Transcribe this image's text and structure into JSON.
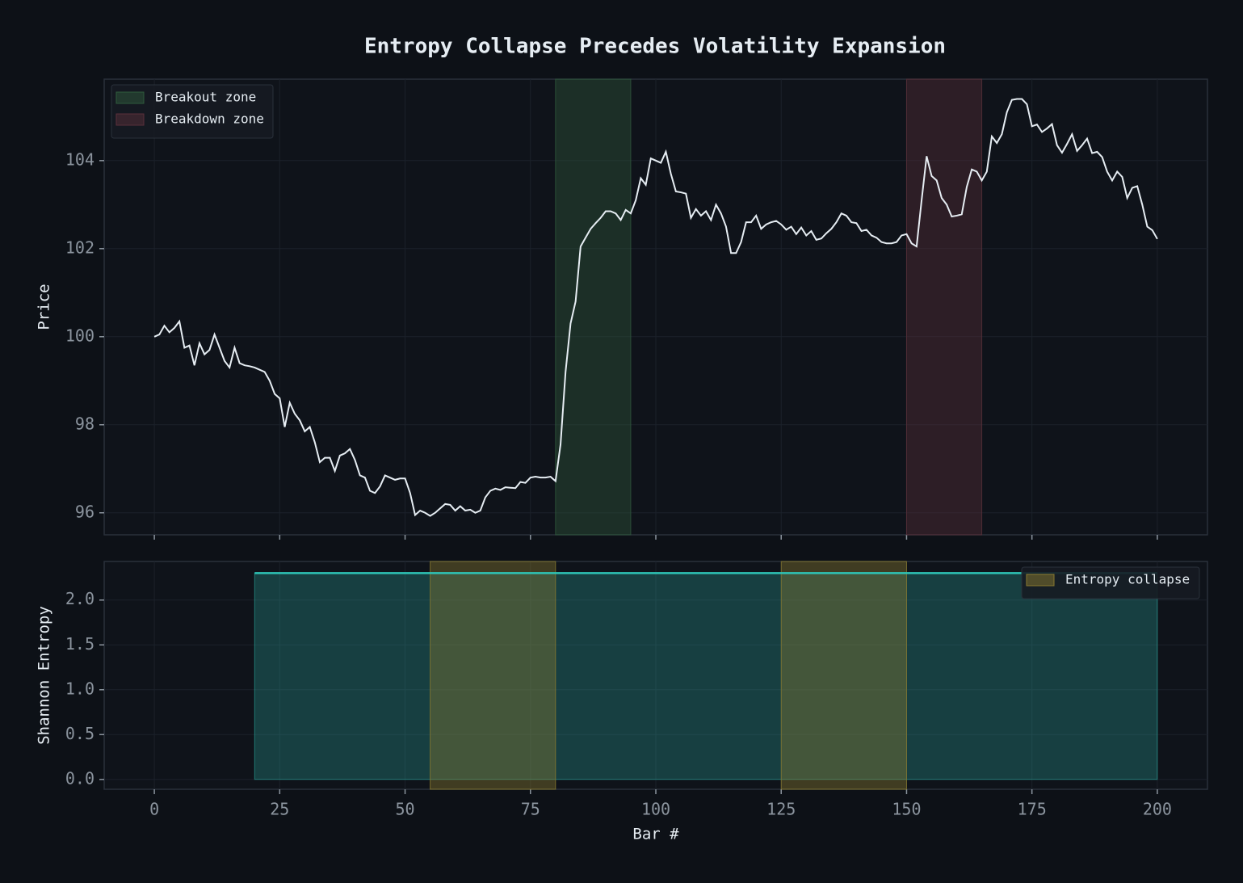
{
  "title": "Entropy Collapse Precedes Volatility Expansion",
  "chart_data": [
    {
      "type": "line",
      "ylabel": "Price",
      "legend": "upper left",
      "grid": true,
      "xlim": [
        -10,
        210
      ],
      "ylim": [
        95.5,
        105.85
      ],
      "xticks": [
        0,
        25,
        50,
        75,
        100,
        125,
        150,
        175,
        200
      ],
      "yticks": [
        96,
        98,
        100,
        102,
        104
      ],
      "spans": [
        {
          "name": "Breakout zone",
          "color": "#2f5a3c",
          "ranges": [
            [
              80,
              95
            ]
          ]
        },
        {
          "name": "Breakdown zone",
          "color": "#5a2f3a",
          "ranges": [
            [
              150,
              165
            ]
          ]
        }
      ],
      "series": [
        {
          "color": "#e6edf3",
          "x": [
            0,
            1,
            2,
            3,
            4,
            5,
            6,
            7,
            8,
            9,
            10,
            11,
            12,
            13,
            14,
            15,
            16,
            17,
            18,
            19,
            20,
            21,
            22,
            23,
            24,
            25,
            26,
            27,
            28,
            29,
            30,
            31,
            32,
            33,
            34,
            35,
            36,
            37,
            38,
            39,
            40,
            41,
            42,
            43,
            44,
            45,
            46,
            47,
            48,
            49,
            50,
            51,
            52,
            53,
            54,
            55,
            56,
            57,
            58,
            59,
            60,
            61,
            62,
            63,
            64,
            65,
            66,
            67,
            68,
            69,
            70,
            71,
            72,
            73,
            74,
            75,
            76,
            77,
            78,
            79,
            80,
            81,
            82,
            83,
            84,
            85,
            86,
            87,
            88,
            89,
            90,
            91,
            92,
            93,
            94,
            95,
            96,
            97,
            98,
            99,
            100,
            101,
            102,
            103,
            104,
            105,
            106,
            107,
            108,
            109,
            110,
            111,
            112,
            113,
            114,
            115,
            116,
            117,
            118,
            119,
            120,
            121,
            122,
            123,
            124,
            125,
            126,
            127,
            128,
            129,
            130,
            131,
            132,
            133,
            134,
            135,
            136,
            137,
            138,
            139,
            140,
            141,
            142,
            143,
            144,
            145,
            146,
            147,
            148,
            149,
            150,
            151,
            152,
            153,
            154,
            155,
            156,
            157,
            158,
            159,
            160,
            161,
            162,
            163,
            164,
            165,
            166,
            167,
            168,
            169,
            170,
            171,
            172,
            173,
            174,
            175,
            176,
            177,
            178,
            179,
            180,
            181,
            182,
            183,
            184,
            185,
            186,
            187,
            188,
            189,
            190,
            191,
            192,
            193,
            194,
            195,
            196,
            197,
            198,
            199,
            200
          ],
          "values": [
            100.0,
            100.05,
            100.25,
            100.1,
            100.2,
            100.35,
            99.75,
            99.8,
            99.35,
            99.85,
            99.6,
            99.7,
            100.05,
            99.75,
            99.45,
            99.3,
            99.75,
            99.4,
            99.35,
            99.33,
            99.3,
            99.25,
            99.2,
            99.0,
            98.7,
            98.6,
            97.95,
            98.5,
            98.25,
            98.1,
            97.85,
            97.95,
            97.6,
            97.15,
            97.25,
            97.25,
            96.95,
            97.3,
            97.35,
            97.45,
            97.2,
            96.85,
            96.8,
            96.5,
            96.45,
            96.6,
            96.85,
            96.8,
            96.75,
            96.78,
            96.78,
            96.45,
            95.95,
            96.05,
            96.0,
            95.93,
            96.0,
            96.1,
            96.2,
            96.18,
            96.05,
            96.15,
            96.05,
            96.07,
            96.0,
            96.05,
            96.35,
            96.5,
            96.55,
            96.52,
            96.58,
            96.57,
            96.56,
            96.7,
            96.68,
            96.8,
            96.82,
            96.8,
            96.8,
            96.82,
            96.72,
            97.55,
            99.2,
            100.3,
            100.8,
            102.05,
            102.25,
            102.45,
            102.58,
            102.7,
            102.85,
            102.85,
            102.8,
            102.65,
            102.88,
            102.8,
            103.1,
            103.6,
            103.45,
            104.05,
            104.0,
            103.95,
            104.2,
            103.7,
            103.3,
            103.28,
            103.25,
            102.7,
            102.9,
            102.75,
            102.85,
            102.65,
            103.0,
            102.8,
            102.5,
            101.9,
            101.9,
            102.15,
            102.6,
            102.6,
            102.75,
            102.45,
            102.55,
            102.6,
            102.63,
            102.55,
            102.43,
            102.5,
            102.33,
            102.48,
            102.3,
            102.4,
            102.2,
            102.23,
            102.35,
            102.45,
            102.6,
            102.8,
            102.75,
            102.6,
            102.58,
            102.4,
            102.43,
            102.3,
            102.25,
            102.15,
            102.12,
            102.12,
            102.15,
            102.3,
            102.33,
            102.12,
            102.05,
            103.1,
            104.1,
            103.65,
            103.55,
            103.15,
            103.0,
            102.73,
            102.75,
            102.78,
            103.4,
            103.8,
            103.75,
            103.55,
            103.75,
            104.55,
            104.4,
            104.6,
            105.1,
            105.38,
            105.4,
            105.4,
            105.28,
            104.78,
            104.82,
            104.65,
            104.73,
            104.83,
            104.35,
            104.18,
            104.38,
            104.6,
            104.22,
            104.35,
            104.5,
            104.17,
            104.2,
            104.08,
            103.75,
            103.55,
            103.75,
            103.63,
            103.15,
            103.38,
            103.42,
            103.0,
            102.5,
            102.42,
            102.22
          ]
        }
      ]
    },
    {
      "type": "area",
      "ylabel": "Shannon Entropy",
      "xlabel": "Bar #",
      "legend": "upper right",
      "grid": true,
      "xlim": [
        -10,
        210
      ],
      "ylim": [
        -0.11,
        2.43
      ],
      "xticks": [
        0,
        25,
        50,
        75,
        100,
        125,
        150,
        175,
        200
      ],
      "yticks": [
        {
          "value": 0,
          "label": "0.0"
        },
        0.5,
        {
          "value": 1,
          "label": "1.0"
        },
        1.5,
        {
          "value": 2,
          "label": "2.0"
        }
      ],
      "spans": [
        {
          "name": "Entropy collapse",
          "color": "#8a7a30",
          "ranges": [
            [
              55,
              80
            ],
            [
              125,
              150
            ]
          ]
        }
      ],
      "series": [
        {
          "color": "#2ec4b6",
          "x": [
            20,
            200
          ],
          "values": [
            2.3,
            2.3
          ]
        }
      ]
    }
  ]
}
